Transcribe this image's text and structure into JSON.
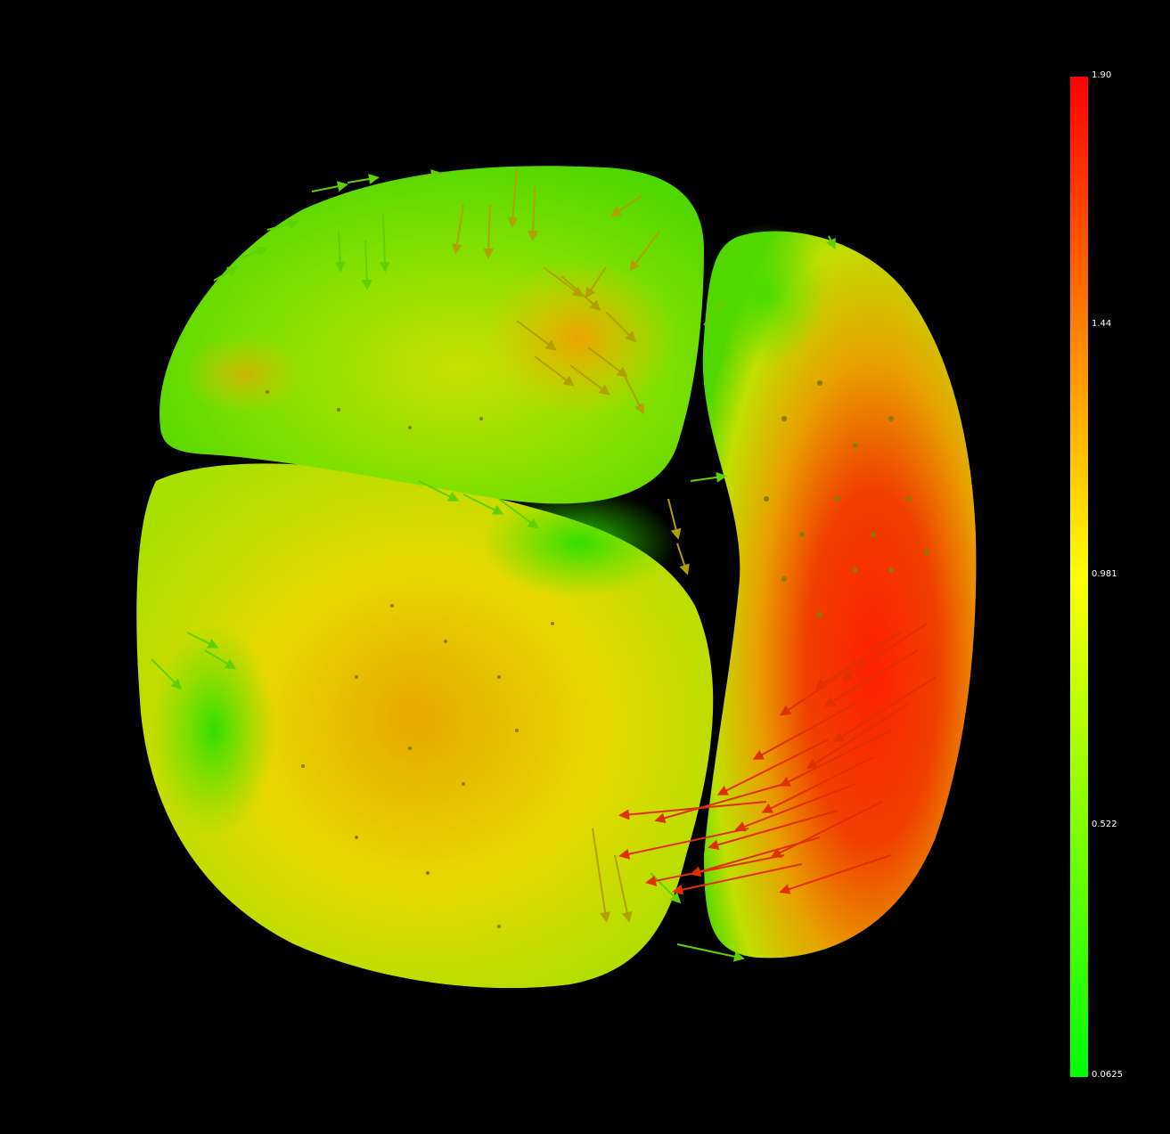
{
  "scene": {
    "background": "#000000",
    "surface_colormap": [
      "#00ff00",
      "#ffff00",
      "#ff0000"
    ]
  },
  "colorbar": {
    "min": 0.0625,
    "max": 1.9,
    "colors": {
      "low": "#00ff00",
      "mid": "#ffff00",
      "high": "#ff0000"
    },
    "labels": {
      "t0": "1.90",
      "t1": "1.44",
      "t2": "0.981",
      "t3": "0.522",
      "t4": "0.0625"
    }
  }
}
